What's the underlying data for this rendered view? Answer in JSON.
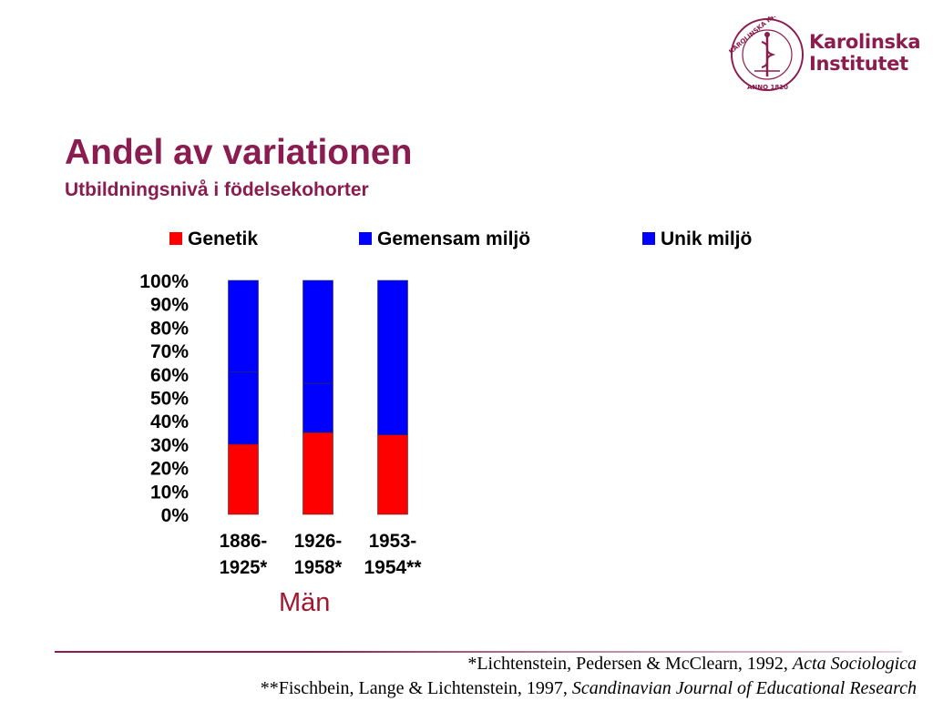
{
  "logo": {
    "name": "Karolinska Institutet",
    "line1": "Karolinska",
    "line2": "Institutet",
    "seal_text": "KAROLINSKA INSTITUTET · ANNO 1810",
    "color": "#8b1d4e"
  },
  "title": "Andel av variationen",
  "subtitle": "Utbildningsnivå i födelsekohorter",
  "colors": {
    "title": "#8a1c50",
    "genetik": "#ff0000",
    "gemensam": "#0000ff",
    "unik": "#0000ff",
    "group_label": "#a0172e"
  },
  "chart_data": {
    "type": "bar",
    "stacked": true,
    "categories": [
      "1886-1925*",
      "1926-1958*",
      "1953-1954**"
    ],
    "category_lines": [
      [
        "1886-",
        "1925*"
      ],
      [
        "1926-",
        "1958*"
      ],
      [
        "1953-",
        "1954**"
      ]
    ],
    "series": [
      {
        "name": "Genetik",
        "values": [
          30,
          35,
          34
        ]
      },
      {
        "name": "Gemensam miljö",
        "values": [
          31,
          21,
          0
        ]
      },
      {
        "name": "Unik miljö",
        "values": [
          39,
          44,
          66
        ]
      }
    ],
    "ylim": [
      0,
      100
    ],
    "yticks": [
      "0%",
      "10%",
      "20%",
      "30%",
      "40%",
      "50%",
      "60%",
      "70%",
      "80%",
      "90%",
      "100%"
    ],
    "xlabel": "Män",
    "ylabel": "",
    "legend_position": "top",
    "grid": false
  },
  "footnotes": [
    {
      "text": "*Lichtenstein, Pedersen & McClearn, 1992, ",
      "italic": "Acta Sociologica"
    },
    {
      "text": "**Fischbein, Lange & Lichtenstein, 1997, ",
      "italic": "Scandinavian Journal of Educational Research"
    }
  ]
}
